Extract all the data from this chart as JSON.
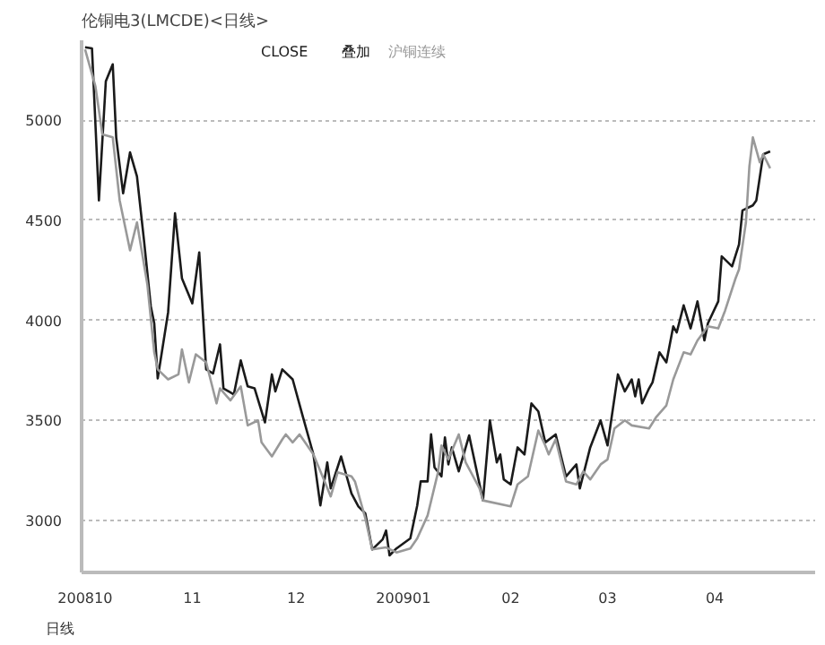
{
  "chart_data": {
    "type": "line",
    "title": "伦铜电3(LMCDE)<日线>",
    "annotations": [
      "叠加",
      "日线"
    ],
    "xlim": [
      "2008-09-30",
      "2009-04-30"
    ],
    "xticks": [
      {
        "value": "2008-10-01",
        "label": "200810"
      },
      {
        "value": "2008-11-01",
        "label": "11"
      },
      {
        "value": "2008-12-01",
        "label": "12"
      },
      {
        "value": "2009-01-01",
        "label": "200901"
      },
      {
        "value": "2009-02-01",
        "label": "02"
      },
      {
        "value": "2009-03-01",
        "label": "03"
      },
      {
        "value": "2009-04-01",
        "label": "04"
      }
    ],
    "ylim": [
      2740,
      5400
    ],
    "yticks": [
      3000,
      3500,
      4000,
      4500,
      5000
    ],
    "grid": "y",
    "line_style": "solid",
    "series": [
      {
        "name": "CLOSE",
        "color": "#1a1a1a",
        "x": [
          "2008-10-01",
          "2008-10-03",
          "2008-10-05",
          "2008-10-07",
          "2008-10-09",
          "2008-10-10",
          "2008-10-12",
          "2008-10-14",
          "2008-10-16",
          "2008-10-18",
          "2008-10-20",
          "2008-10-21",
          "2008-10-22",
          "2008-10-25",
          "2008-10-27",
          "2008-10-29",
          "2008-11-01",
          "2008-11-03",
          "2008-11-05",
          "2008-11-07",
          "2008-11-09",
          "2008-11-10",
          "2008-11-13",
          "2008-11-15",
          "2008-11-17",
          "2008-11-19",
          "2008-11-22",
          "2008-11-24",
          "2008-11-25",
          "2008-11-27",
          "2008-11-30",
          "2008-12-03",
          "2008-12-06",
          "2008-12-08",
          "2008-12-10",
          "2008-12-11",
          "2008-12-14",
          "2008-12-17",
          "2008-12-19",
          "2008-12-21",
          "2008-12-23",
          "2008-12-26",
          "2008-12-27",
          "2008-12-28",
          "2008-12-30",
          "2009-01-03",
          "2009-01-05",
          "2009-01-06",
          "2009-01-08",
          "2009-01-09",
          "2009-01-10",
          "2009-01-12",
          "2009-01-13",
          "2009-01-14",
          "2009-01-15",
          "2009-01-17",
          "2009-01-20",
          "2009-01-24",
          "2009-01-26",
          "2009-01-28",
          "2009-01-29",
          "2009-01-30",
          "2009-02-01",
          "2009-02-03",
          "2009-02-05",
          "2009-02-07",
          "2009-02-09",
          "2009-02-11",
          "2009-02-14",
          "2009-02-17",
          "2009-02-20",
          "2009-02-21",
          "2009-02-24",
          "2009-02-27",
          "2009-03-01",
          "2009-03-04",
          "2009-03-06",
          "2009-03-08",
          "2009-03-09",
          "2009-03-10",
          "2009-03-11",
          "2009-03-13",
          "2009-03-14",
          "2009-03-16",
          "2009-03-18",
          "2009-03-20",
          "2009-03-21",
          "2009-03-23",
          "2009-03-25",
          "2009-03-27",
          "2009-03-29",
          "2009-03-30",
          "2009-04-02",
          "2009-04-03",
          "2009-04-06",
          "2009-04-08",
          "2009-04-09",
          "2009-04-12",
          "2009-04-13",
          "2009-04-15",
          "2009-04-17"
        ],
        "values": [
          5365,
          5360,
          4600,
          5195,
          5280,
          4915,
          4635,
          4840,
          4720,
          4405,
          4070,
          3985,
          3710,
          4040,
          4535,
          4210,
          4085,
          4340,
          3755,
          3735,
          3880,
          3660,
          3630,
          3800,
          3670,
          3660,
          3490,
          3730,
          3645,
          3755,
          3705,
          3515,
          3330,
          3075,
          3290,
          3160,
          3320,
          3135,
          3070,
          3035,
          2855,
          2905,
          2950,
          2825,
          2860,
          2910,
          3075,
          3195,
          3195,
          3430,
          3265,
          3220,
          3415,
          3280,
          3365,
          3245,
          3425,
          3100,
          3500,
          3290,
          3330,
          3205,
          3180,
          3365,
          3330,
          3585,
          3545,
          3390,
          3430,
          3220,
          3280,
          3160,
          3365,
          3500,
          3375,
          3730,
          3645,
          3705,
          3620,
          3705,
          3585,
          3660,
          3690,
          3840,
          3790,
          3970,
          3940,
          4075,
          3960,
          4095,
          3900,
          3985,
          4095,
          4320,
          4270,
          4380,
          4550,
          4575,
          4600,
          4830,
          4845
        ]
      },
      {
        "name": "沪铜连续",
        "color": "#999999",
        "x": [
          "2008-10-01",
          "2008-10-04",
          "2008-10-06",
          "2008-10-09",
          "2008-10-11",
          "2008-10-14",
          "2008-10-16",
          "2008-10-19",
          "2008-10-21",
          "2008-10-22",
          "2008-10-25",
          "2008-10-28",
          "2008-10-29",
          "2008-10-31",
          "2008-11-02",
          "2008-11-05",
          "2008-11-08",
          "2008-11-09",
          "2008-11-12",
          "2008-11-15",
          "2008-11-17",
          "2008-11-20",
          "2008-11-21",
          "2008-11-24",
          "2008-11-27",
          "2008-11-28",
          "2008-11-30",
          "2008-12-02",
          "2008-12-06",
          "2008-12-09",
          "2008-12-11",
          "2008-12-13",
          "2008-12-17",
          "2008-12-18",
          "2008-12-21",
          "2008-12-23",
          "2008-12-27",
          "2008-12-30",
          "2009-01-03",
          "2009-01-05",
          "2009-01-08",
          "2009-01-11",
          "2009-01-12",
          "2009-01-14",
          "2009-01-17",
          "2009-01-19",
          "2009-01-23",
          "2009-01-24",
          "2009-02-01",
          "2009-02-03",
          "2009-02-06",
          "2009-02-09",
          "2009-02-11",
          "2009-02-12",
          "2009-02-14",
          "2009-02-17",
          "2009-02-20",
          "2009-02-22",
          "2009-02-24",
          "2009-02-27",
          "2009-03-01",
          "2009-03-03",
          "2009-03-06",
          "2009-03-08",
          "2009-03-13",
          "2009-03-15",
          "2009-03-18",
          "2009-03-20",
          "2009-03-23",
          "2009-03-25",
          "2009-03-27",
          "2009-03-30",
          "2009-04-02",
          "2009-04-04",
          "2009-04-07",
          "2009-04-08",
          "2009-04-10",
          "2009-04-11",
          "2009-04-12",
          "2009-04-14",
          "2009-04-15",
          "2009-04-17"
        ],
        "values": [
          5355,
          5170,
          4930,
          4915,
          4600,
          4350,
          4490,
          4180,
          3840,
          3755,
          3705,
          3730,
          3855,
          3690,
          3830,
          3790,
          3585,
          3660,
          3600,
          3670,
          3475,
          3500,
          3390,
          3320,
          3405,
          3430,
          3390,
          3430,
          3330,
          3205,
          3120,
          3240,
          3220,
          3195,
          3010,
          2855,
          2865,
          2840,
          2860,
          2910,
          3025,
          3240,
          3375,
          3305,
          3430,
          3290,
          3160,
          3100,
          3070,
          3180,
          3220,
          3450,
          3375,
          3330,
          3405,
          3195,
          3180,
          3245,
          3205,
          3280,
          3305,
          3460,
          3500,
          3475,
          3460,
          3515,
          3575,
          3705,
          3840,
          3830,
          3900,
          3970,
          3960,
          4050,
          4210,
          4255,
          4490,
          4770,
          4915,
          4790,
          4830,
          4760
        ]
      }
    ]
  }
}
